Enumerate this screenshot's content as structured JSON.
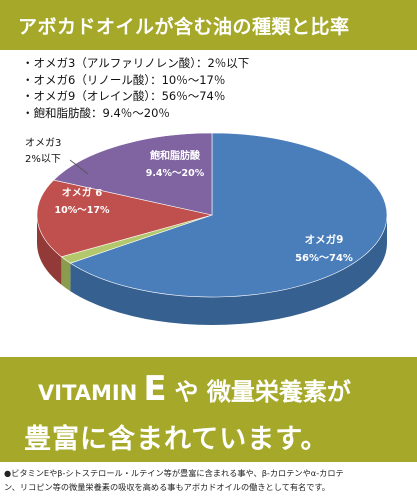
{
  "header": {
    "title": "アボカドオイルが含む油の種類と比率"
  },
  "legend": [
    "・オメガ3（アルファリノレン酸）：2％以下",
    "・オメガ6（リノール酸）：10％～17％",
    "・オメガ9（オレイン酸）：56％～74％",
    "・飽和脂肪酸：9.4％～20％"
  ],
  "chart_data": {
    "type": "pie",
    "title": "アボカドオイルが含む油の種類と比率",
    "slices": [
      {
        "name": "オメガ9",
        "range": "56%～74%",
        "value": 65,
        "color": "#4a7ebb",
        "side": "#36608f"
      },
      {
        "name": "オメガ3",
        "range": "2%以下",
        "value": 1.5,
        "color": "#b3c86c",
        "side": "#8c9c4f"
      },
      {
        "name": "オメガ6",
        "range": "10%～17%",
        "value": 15.5,
        "color": "#c0504d",
        "side": "#913a38"
      },
      {
        "name": "飽和脂肪酸",
        "range": "9.4%～20%",
        "value": 18,
        "color": "#8064a2",
        "side": "#5f4a7a"
      }
    ],
    "labels": {
      "omega9": {
        "name": "オメガ9",
        "range": "56%～74%"
      },
      "omega6": {
        "name": "オメガ 6",
        "range": "10%～17%"
      },
      "omega3": {
        "name": "オメガ3",
        "range": "2%以下"
      },
      "saturated": {
        "name": "飽和脂肪酸",
        "range": "9.4%～20%"
      }
    }
  },
  "promo": {
    "vitamin": "VITAMIN",
    "e": "E",
    "line1_rest": "や 微量栄養素が",
    "line2": "豊富に含まれています。"
  },
  "footnote": {
    "line1": "●ビタミンEやβ-シトステロール・ルテイン等が豊富に含まれる事や、β-カロテンやα-カロテ",
    "line2": "ン、リコピン等の微量栄養素の吸収を高める事もアボカドオイルの働きとして有名です。"
  }
}
